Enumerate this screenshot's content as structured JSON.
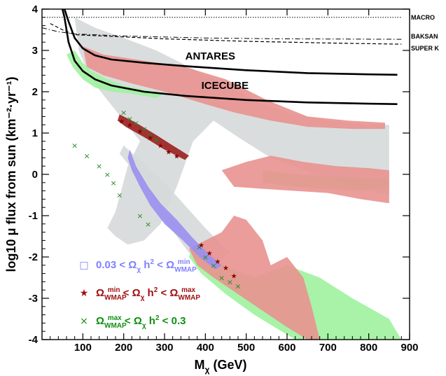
{
  "chart_data": {
    "type": "scatter",
    "xlabel": {
      "main": "M",
      "sub": "χ",
      "rest": " (GeV)"
    },
    "ylabel": "log10 μ flux from sun (km⁻²·yr⁻¹)",
    "xlim": [
      0,
      900
    ],
    "ylim": [
      -4,
      4
    ],
    "x_ticks": [
      100,
      200,
      300,
      400,
      500,
      600,
      700,
      800,
      900
    ],
    "y_ticks": [
      -4,
      -3,
      -2,
      -1,
      0,
      1,
      2,
      3,
      4
    ],
    "x_tick_labels": [
      "100",
      "200",
      "300",
      "400",
      "500",
      "600",
      "700",
      "800",
      "900"
    ],
    "y_tick_labels": [
      "-4",
      "-3",
      "-2",
      "-1",
      "0",
      "1",
      "2",
      "3",
      "4"
    ],
    "lines": [
      {
        "name": "ANTARES",
        "style": "solid",
        "points": [
          [
            55,
            4.0
          ],
          [
            65,
            3.7
          ],
          [
            80,
            3.3
          ],
          [
            100,
            3.05
          ],
          [
            130,
            2.88
          ],
          [
            170,
            2.78
          ],
          [
            250,
            2.7
          ],
          [
            350,
            2.62
          ],
          [
            500,
            2.52
          ],
          [
            650,
            2.45
          ],
          [
            800,
            2.42
          ],
          [
            870,
            2.41
          ]
        ]
      },
      {
        "name": "ICECUBE",
        "style": "solid",
        "points": [
          [
            50,
            4.0
          ],
          [
            55,
            3.8
          ],
          [
            65,
            3.2
          ],
          [
            80,
            2.75
          ],
          [
            100,
            2.5
          ],
          [
            130,
            2.3
          ],
          [
            170,
            2.15
          ],
          [
            250,
            2.0
          ],
          [
            350,
            1.9
          ],
          [
            500,
            1.8
          ],
          [
            650,
            1.74
          ],
          [
            800,
            1.71
          ],
          [
            870,
            1.7
          ]
        ]
      },
      {
        "name": "MACRO",
        "style": "dotted",
        "points": [
          [
            0,
            3.8
          ],
          [
            200,
            3.8
          ],
          [
            400,
            3.8
          ],
          [
            600,
            3.8
          ],
          [
            800,
            3.8
          ],
          [
            880,
            3.8
          ]
        ]
      },
      {
        "name": "BAKSAN",
        "style": "dashdot",
        "points": [
          [
            0,
            3.55
          ],
          [
            40,
            3.45
          ],
          [
            80,
            3.4
          ],
          [
            200,
            3.35
          ],
          [
            400,
            3.3
          ],
          [
            600,
            3.28
          ],
          [
            880,
            3.27
          ]
        ]
      },
      {
        "name": "SUPER K",
        "style": "dashed",
        "points": [
          [
            20,
            3.65
          ],
          [
            50,
            3.5
          ],
          [
            80,
            3.38
          ],
          [
            150,
            3.35
          ],
          [
            300,
            3.28
          ],
          [
            500,
            3.22
          ],
          [
            700,
            3.18
          ],
          [
            880,
            3.15
          ]
        ]
      }
    ],
    "regions": [
      {
        "name": "all models (grey)",
        "color": "#d6d9da",
        "polygon": [
          [
            80,
            3.8
          ],
          [
            130,
            3.55
          ],
          [
            200,
            3.3
          ],
          [
            280,
            3.0
          ],
          [
            360,
            2.6
          ],
          [
            440,
            2.2
          ],
          [
            520,
            1.8
          ],
          [
            600,
            1.5
          ],
          [
            700,
            1.3
          ],
          [
            800,
            1.2
          ],
          [
            850,
            1.2
          ],
          [
            850,
            -0.5
          ],
          [
            760,
            -0.3
          ],
          [
            660,
            0.05
          ],
          [
            560,
            0.4
          ],
          [
            480,
            0.9
          ],
          [
            420,
            1.3
          ],
          [
            370,
            0.8
          ],
          [
            330,
            -0.3
          ],
          [
            290,
            -1.2
          ],
          [
            250,
            -1.6
          ],
          [
            210,
            -1.7
          ],
          [
            180,
            -1.5
          ],
          [
            160,
            -1.3
          ],
          [
            180,
            -0.9
          ],
          [
            210,
            0.2
          ],
          [
            240,
            0.8
          ],
          [
            200,
            1.3
          ],
          [
            160,
            1.8
          ],
          [
            120,
            2.3
          ],
          [
            90,
            3.0
          ]
        ]
      },
      {
        "name": "low-mass branch (grey)",
        "color": "#d6d9da",
        "polygon": [
          [
            200,
            0.7
          ],
          [
            300,
            -0.2
          ],
          [
            400,
            -1.3
          ],
          [
            460,
            -1.9
          ],
          [
            420,
            -2.2
          ],
          [
            360,
            -1.9
          ],
          [
            300,
            -1.1
          ],
          [
            240,
            -0.1
          ],
          [
            190,
            0.5
          ]
        ]
      },
      {
        "name": "lower wedge (green)",
        "color": "#9ff29f",
        "polygon": [
          [
            370,
            -1.7
          ],
          [
            440,
            -2.2
          ],
          [
            520,
            -2.5
          ],
          [
            600,
            -2.2
          ],
          [
            680,
            -2.5
          ],
          [
            760,
            -3.0
          ],
          [
            850,
            -3.5
          ],
          [
            880,
            -4.0
          ],
          [
            620,
            -4.0
          ],
          [
            520,
            -3.4
          ],
          [
            450,
            -2.9
          ],
          [
            390,
            -2.4
          ],
          [
            360,
            -2.0
          ]
        ]
      },
      {
        "name": "lower wedge (pink)",
        "color": "#e8928f",
        "polygon": [
          [
            360,
            -1.8
          ],
          [
            400,
            -1.6
          ],
          [
            440,
            -1.4
          ],
          [
            470,
            -1.0
          ],
          [
            500,
            -1.1
          ],
          [
            540,
            -1.6
          ],
          [
            560,
            -2.2
          ],
          [
            600,
            -2.0
          ],
          [
            640,
            -2.5
          ],
          [
            660,
            -3.2
          ],
          [
            680,
            -4.0
          ],
          [
            650,
            -4.0
          ],
          [
            600,
            -3.7
          ],
          [
            540,
            -3.3
          ],
          [
            480,
            -2.9
          ],
          [
            420,
            -2.5
          ],
          [
            380,
            -2.2
          ]
        ]
      },
      {
        "name": "upper band (pink)",
        "color": "#e8928f",
        "polygon": [
          [
            100,
            3.1
          ],
          [
            150,
            2.9
          ],
          [
            250,
            2.75
          ],
          [
            350,
            2.6
          ],
          [
            450,
            2.3
          ],
          [
            550,
            1.8
          ],
          [
            650,
            1.4
          ],
          [
            750,
            1.3
          ],
          [
            840,
            1.25
          ],
          [
            840,
            1.1
          ],
          [
            760,
            1.1
          ],
          [
            650,
            1.15
          ],
          [
            560,
            1.3
          ],
          [
            470,
            1.5
          ],
          [
            400,
            1.7
          ],
          [
            300,
            2.0
          ],
          [
            220,
            2.2
          ],
          [
            150,
            2.4
          ],
          [
            110,
            2.6
          ]
        ]
      },
      {
        "name": "upper band (green)",
        "color": "#9ff29f",
        "polygon": [
          [
            80,
            3.0
          ],
          [
            100,
            2.7
          ],
          [
            120,
            2.5
          ],
          [
            160,
            2.3
          ],
          [
            200,
            2.15
          ],
          [
            250,
            2.05
          ],
          [
            300,
            1.95
          ],
          [
            280,
            1.85
          ],
          [
            220,
            1.95
          ],
          [
            170,
            2.0
          ],
          [
            130,
            2.1
          ],
          [
            100,
            2.3
          ],
          [
            75,
            2.6
          ],
          [
            60,
            2.9
          ]
        ]
      },
      {
        "name": "middle bands (green)",
        "color": "#9ff29f",
        "polygon": [
          [
            540,
            0.1
          ],
          [
            620,
            0.0
          ],
          [
            700,
            -0.05
          ],
          [
            780,
            -0.1
          ],
          [
            850,
            -0.1
          ],
          [
            850,
            -0.3
          ],
          [
            780,
            -0.4
          ],
          [
            700,
            -0.35
          ],
          [
            620,
            -0.3
          ],
          [
            540,
            -0.2
          ]
        ]
      },
      {
        "name": "middle bands (pink)",
        "color": "#e8928f",
        "polygon": [
          [
            440,
            0.1
          ],
          [
            500,
            0.3
          ],
          [
            560,
            0.45
          ],
          [
            640,
            0.3
          ],
          [
            720,
            0.2
          ],
          [
            800,
            0.15
          ],
          [
            850,
            0.1
          ],
          [
            850,
            -0.7
          ],
          [
            780,
            -0.6
          ],
          [
            700,
            -0.45
          ],
          [
            620,
            -0.4
          ],
          [
            540,
            -0.35
          ],
          [
            470,
            -0.3
          ]
        ]
      },
      {
        "name": "blue band",
        "color": "#9a8ff0",
        "polygon": [
          [
            215,
            0.6
          ],
          [
            230,
            0.2
          ],
          [
            260,
            -0.3
          ],
          [
            290,
            -0.7
          ],
          [
            330,
            -1.1
          ],
          [
            370,
            -1.55
          ],
          [
            410,
            -1.95
          ],
          [
            440,
            -2.2
          ],
          [
            425,
            -2.3
          ],
          [
            385,
            -2.0
          ],
          [
            345,
            -1.6
          ],
          [
            300,
            -1.2
          ],
          [
            265,
            -0.75
          ],
          [
            240,
            -0.3
          ],
          [
            220,
            0.1
          ],
          [
            210,
            0.4
          ]
        ]
      },
      {
        "name": "upper diagonal (dark red / green)",
        "color": "#9a1f1f",
        "polygon": [
          [
            190,
            1.45
          ],
          [
            230,
            1.25
          ],
          [
            280,
            0.95
          ],
          [
            320,
            0.7
          ],
          [
            360,
            0.45
          ],
          [
            350,
            0.35
          ],
          [
            300,
            0.6
          ],
          [
            250,
            0.9
          ],
          [
            205,
            1.15
          ],
          [
            185,
            1.3
          ]
        ]
      }
    ],
    "crosses": {
      "color": "#228b22",
      "points": [
        [
          80,
          0.7
        ],
        [
          110,
          0.45
        ],
        [
          140,
          0.2
        ],
        [
          160,
          0.0
        ],
        [
          175,
          -0.2
        ],
        [
          190,
          -0.5
        ],
        [
          200,
          1.5
        ],
        [
          215,
          1.35
        ],
        [
          230,
          1.25
        ],
        [
          250,
          1.1
        ],
        [
          265,
          0.95
        ],
        [
          280,
          0.85
        ],
        [
          240,
          -1.0
        ],
        [
          260,
          -1.2
        ],
        [
          385,
          -1.75
        ],
        [
          400,
          -2.0
        ],
        [
          420,
          -2.2
        ],
        [
          440,
          -2.5
        ],
        [
          460,
          -2.6
        ],
        [
          480,
          -2.7
        ]
      ]
    },
    "stars": {
      "color": "#8b0000",
      "points": [
        [
          195,
          1.3
        ],
        [
          215,
          1.2
        ],
        [
          240,
          1.05
        ],
        [
          265,
          0.9
        ],
        [
          290,
          0.7
        ],
        [
          310,
          0.55
        ],
        [
          330,
          0.45
        ],
        [
          390,
          -1.7
        ],
        [
          410,
          -1.9
        ],
        [
          430,
          -2.1
        ],
        [
          450,
          -2.25
        ],
        [
          470,
          -2.45
        ]
      ]
    },
    "curve_labels": [
      "ANTARES",
      "ICECUBE"
    ],
    "limit_labels": [
      "MACRO",
      "BAKSAN",
      "SUPER K"
    ],
    "legend": {
      "placement": "bottom-left",
      "entries": [
        {
          "marker": "□",
          "color": "#8080ff",
          "parts": [
            "0.03 < Ω",
            "χ",
            " h",
            "2",
            " < Ω",
            "WMAP",
            "min"
          ]
        },
        {
          "marker": "★",
          "color": "#a01010",
          "parts": [
            "Ω",
            "WMAP",
            "min",
            " < Ω",
            "χ",
            " h",
            "2",
            " < Ω",
            "WMAP",
            "max"
          ]
        },
        {
          "marker": "×",
          "color": "#109010",
          "parts": [
            "Ω",
            "WMAP",
            "max",
            " < Ω",
            "χ",
            " h",
            "2",
            " < 0.3"
          ]
        }
      ]
    }
  }
}
